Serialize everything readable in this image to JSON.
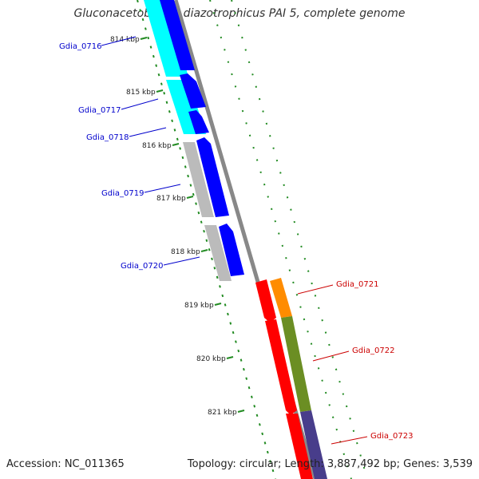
{
  "title": "Gluconacetobacter diazotrophicus PAI 5, complete genome",
  "footer": {
    "accession": "Accession: NC_011365",
    "topology": "Topology: circular; Length: 3,887,492 bp; Genes: 3,539"
  },
  "ticks": [
    {
      "label": "814 kbp"
    },
    {
      "label": "815 kbp"
    },
    {
      "label": "816 kbp"
    },
    {
      "label": "817 kbp"
    },
    {
      "label": "818 kbp"
    },
    {
      "label": "819 kbp"
    },
    {
      "label": "820 kbp"
    },
    {
      "label": "821 kbp"
    }
  ],
  "genes": [
    {
      "name": "Gdia_0716",
      "color": "#0000cc"
    },
    {
      "name": "Gdia_0717",
      "color": "#0000cc"
    },
    {
      "name": "Gdia_0718",
      "color": "#0000cc"
    },
    {
      "name": "Gdia_0719",
      "color": "#0000cc"
    },
    {
      "name": "Gdia_0720",
      "color": "#0000cc"
    },
    {
      "name": "Gdia_0721",
      "color": "#cc0000"
    },
    {
      "name": "Gdia_0722",
      "color": "#cc0000"
    },
    {
      "name": "Gdia_0723",
      "color": "#cc0000"
    }
  ],
  "colors": {
    "backbone": "#888888",
    "tick_mark": "#228b22",
    "cds_forward": "#0000ff",
    "cds_reverse": "#ff0000",
    "rrna_or_misc": "#00ffff",
    "feature_grey": "#bbbbbb",
    "feature_orange": "#ff8c00",
    "feature_olive": "#6b8e23",
    "feature_slate": "#483d8b"
  }
}
